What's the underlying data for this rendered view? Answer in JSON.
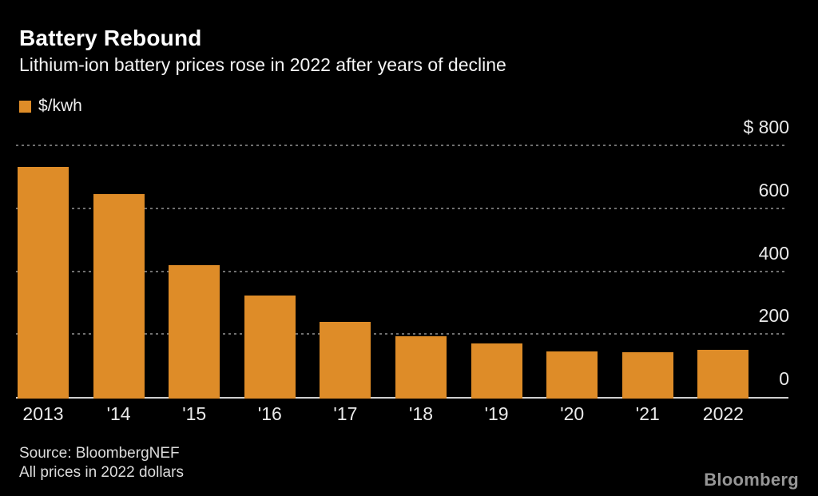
{
  "header": {
    "title": "Battery Rebound",
    "subtitle": "Lithium-ion battery prices rose in 2022 after years of decline"
  },
  "legend": {
    "label": "$/kwh"
  },
  "chart_data": {
    "type": "bar",
    "title": "Battery Rebound",
    "subtitle": "Lithium-ion battery prices rose in 2022 after years of decline",
    "unit": "$/kwh",
    "categories": [
      "2013",
      "'14",
      "'15",
      "'16",
      "'17",
      "'18",
      "'19",
      "'20",
      "'21",
      "2022"
    ],
    "values": [
      732,
      646,
      418,
      323,
      238,
      194,
      170,
      146,
      141,
      151
    ],
    "xlabel": "",
    "ylabel": "$/kwh",
    "ylim": [
      0,
      800
    ],
    "yticks": [
      {
        "label": "$ 800",
        "value": 800
      },
      {
        "label": "600",
        "value": 600
      },
      {
        "label": "400",
        "value": 400
      },
      {
        "label": "200",
        "value": 200
      },
      {
        "label": "0",
        "value": 0
      }
    ],
    "grid": "horizontal-dotted",
    "legend_position": "top-left"
  },
  "footer": {
    "source": "Source:  BloombergNEF",
    "note": "All prices in 2022 dollars",
    "brand": "Bloomberg"
  },
  "colors": {
    "background": "#000000",
    "bar": "#DE8C28",
    "title_text": "#FFFFFF",
    "axis_text": "#E9E9E9",
    "gridline": "#6F6F6F",
    "baseline": "#CFCFCF",
    "brand_text": "#969696"
  }
}
